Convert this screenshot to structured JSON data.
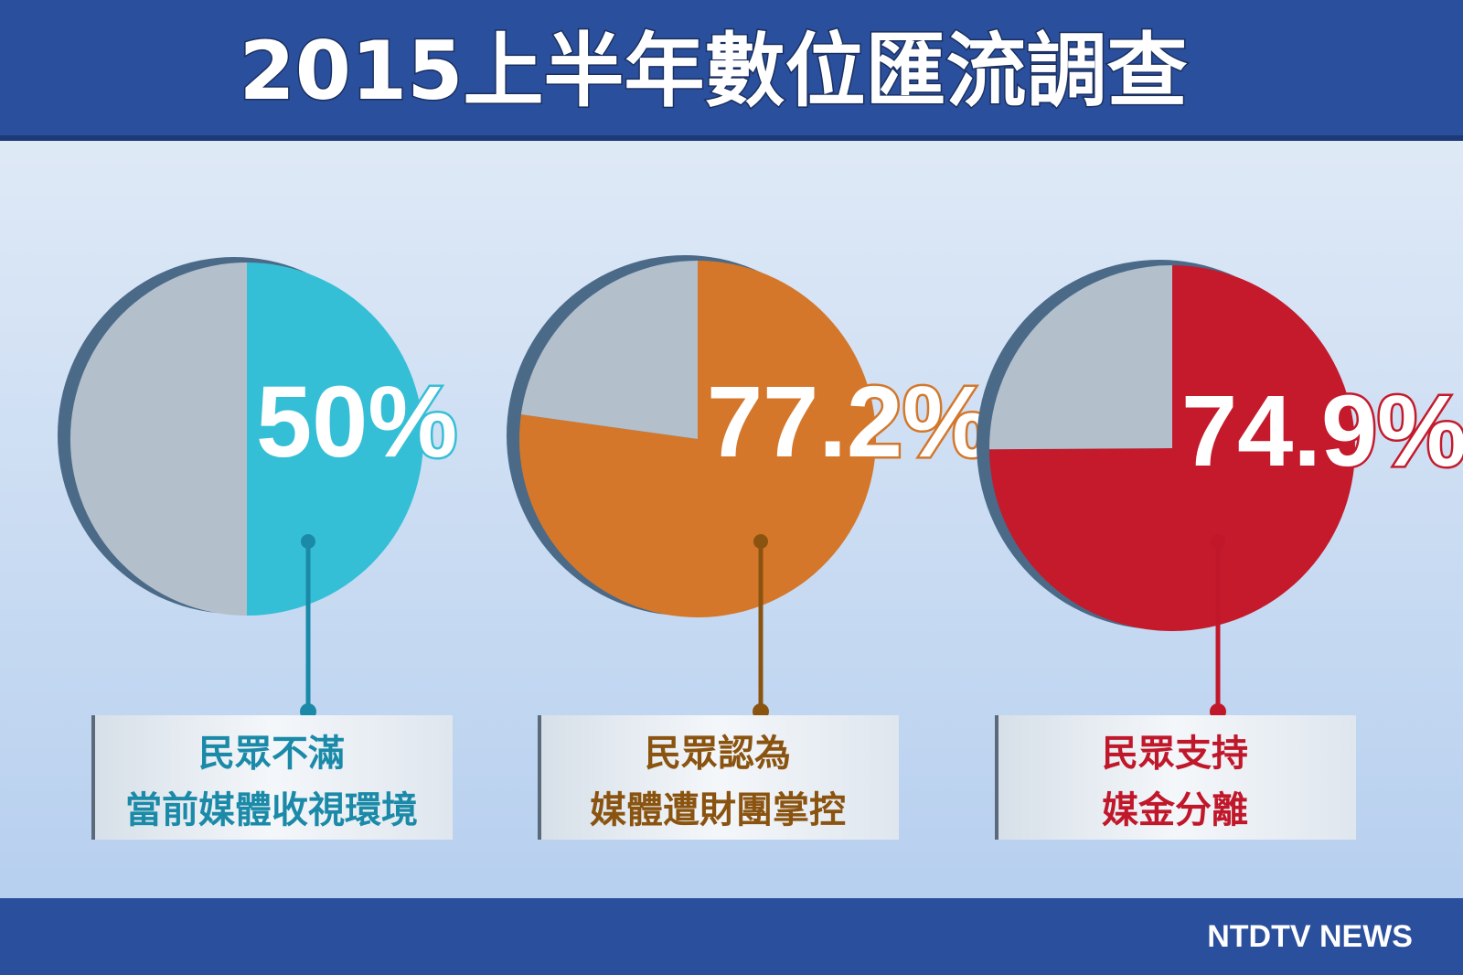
{
  "title": "2015上半年數位匯流調查",
  "footer": "NTDTV NEWS",
  "chart_data": [
    {
      "type": "pie",
      "values": [
        50
      ],
      "value_labels": [
        "50%"
      ],
      "color": "#35bfd6",
      "text_color": "#1a8aa8",
      "caption": [
        "民眾不滿",
        "當前媒體收視環境"
      ]
    },
    {
      "type": "pie",
      "values": [
        77.2
      ],
      "value_labels": [
        "77.2%"
      ],
      "color": "#d4772b",
      "text_color": "#8a5410",
      "caption": [
        "民眾認為",
        "媒體遭財團掌控"
      ]
    },
    {
      "type": "pie",
      "values": [
        74.9
      ],
      "value_labels": [
        "74.9%"
      ],
      "color": "#c41a2c",
      "text_color": "#c0182a",
      "caption": [
        "民眾支持",
        "媒金分離"
      ]
    }
  ]
}
